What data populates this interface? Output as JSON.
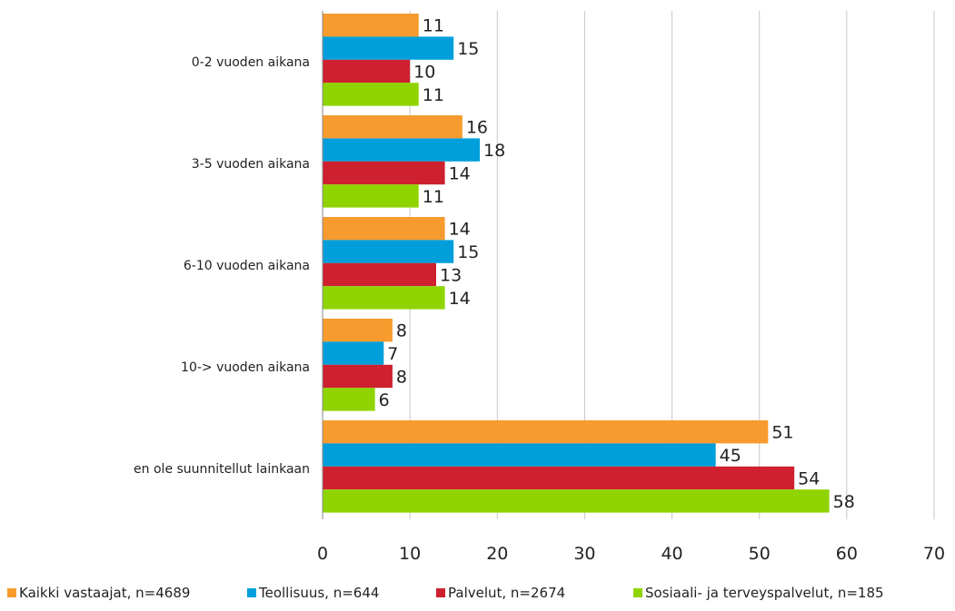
{
  "chart_data": {
    "type": "bar",
    "orientation": "horizontal",
    "categories": [
      "0-2 vuoden aikana",
      "3-5 vuoden aikana",
      "6-10 vuoden aikana",
      "10-> vuoden aikana",
      "en ole suunnitellut lainkaan"
    ],
    "series": [
      {
        "name": "Kaikki vastaajat, n=4689",
        "color": "#F79B2E",
        "values": [
          11,
          16,
          14,
          8,
          51
        ]
      },
      {
        "name": "Teollisuus, n=644",
        "color": "#009FDB",
        "values": [
          15,
          18,
          15,
          7,
          45
        ]
      },
      {
        "name": "Palvelut, n=2674",
        "color": "#CE202F",
        "values": [
          10,
          14,
          13,
          8,
          54
        ]
      },
      {
        "name": "Sosiaali- ja terveyspalvelut, n=185",
        "color": "#8FD400",
        "values": [
          11,
          11,
          14,
          6,
          58
        ]
      }
    ],
    "data_labels": [
      [
        "11",
        "16",
        "14",
        "8",
        "51"
      ],
      [
        "15",
        "18",
        "15",
        "7",
        "45"
      ],
      [
        "10",
        "14",
        "13",
        "8",
        "54"
      ],
      [
        "11",
        "11",
        "14",
        "6",
        "58"
      ]
    ],
    "xlim": [
      0,
      70
    ],
    "x_ticks": [
      0,
      10,
      20,
      30,
      40,
      50,
      60,
      70
    ],
    "grid": true,
    "legend_position": "bottom"
  }
}
